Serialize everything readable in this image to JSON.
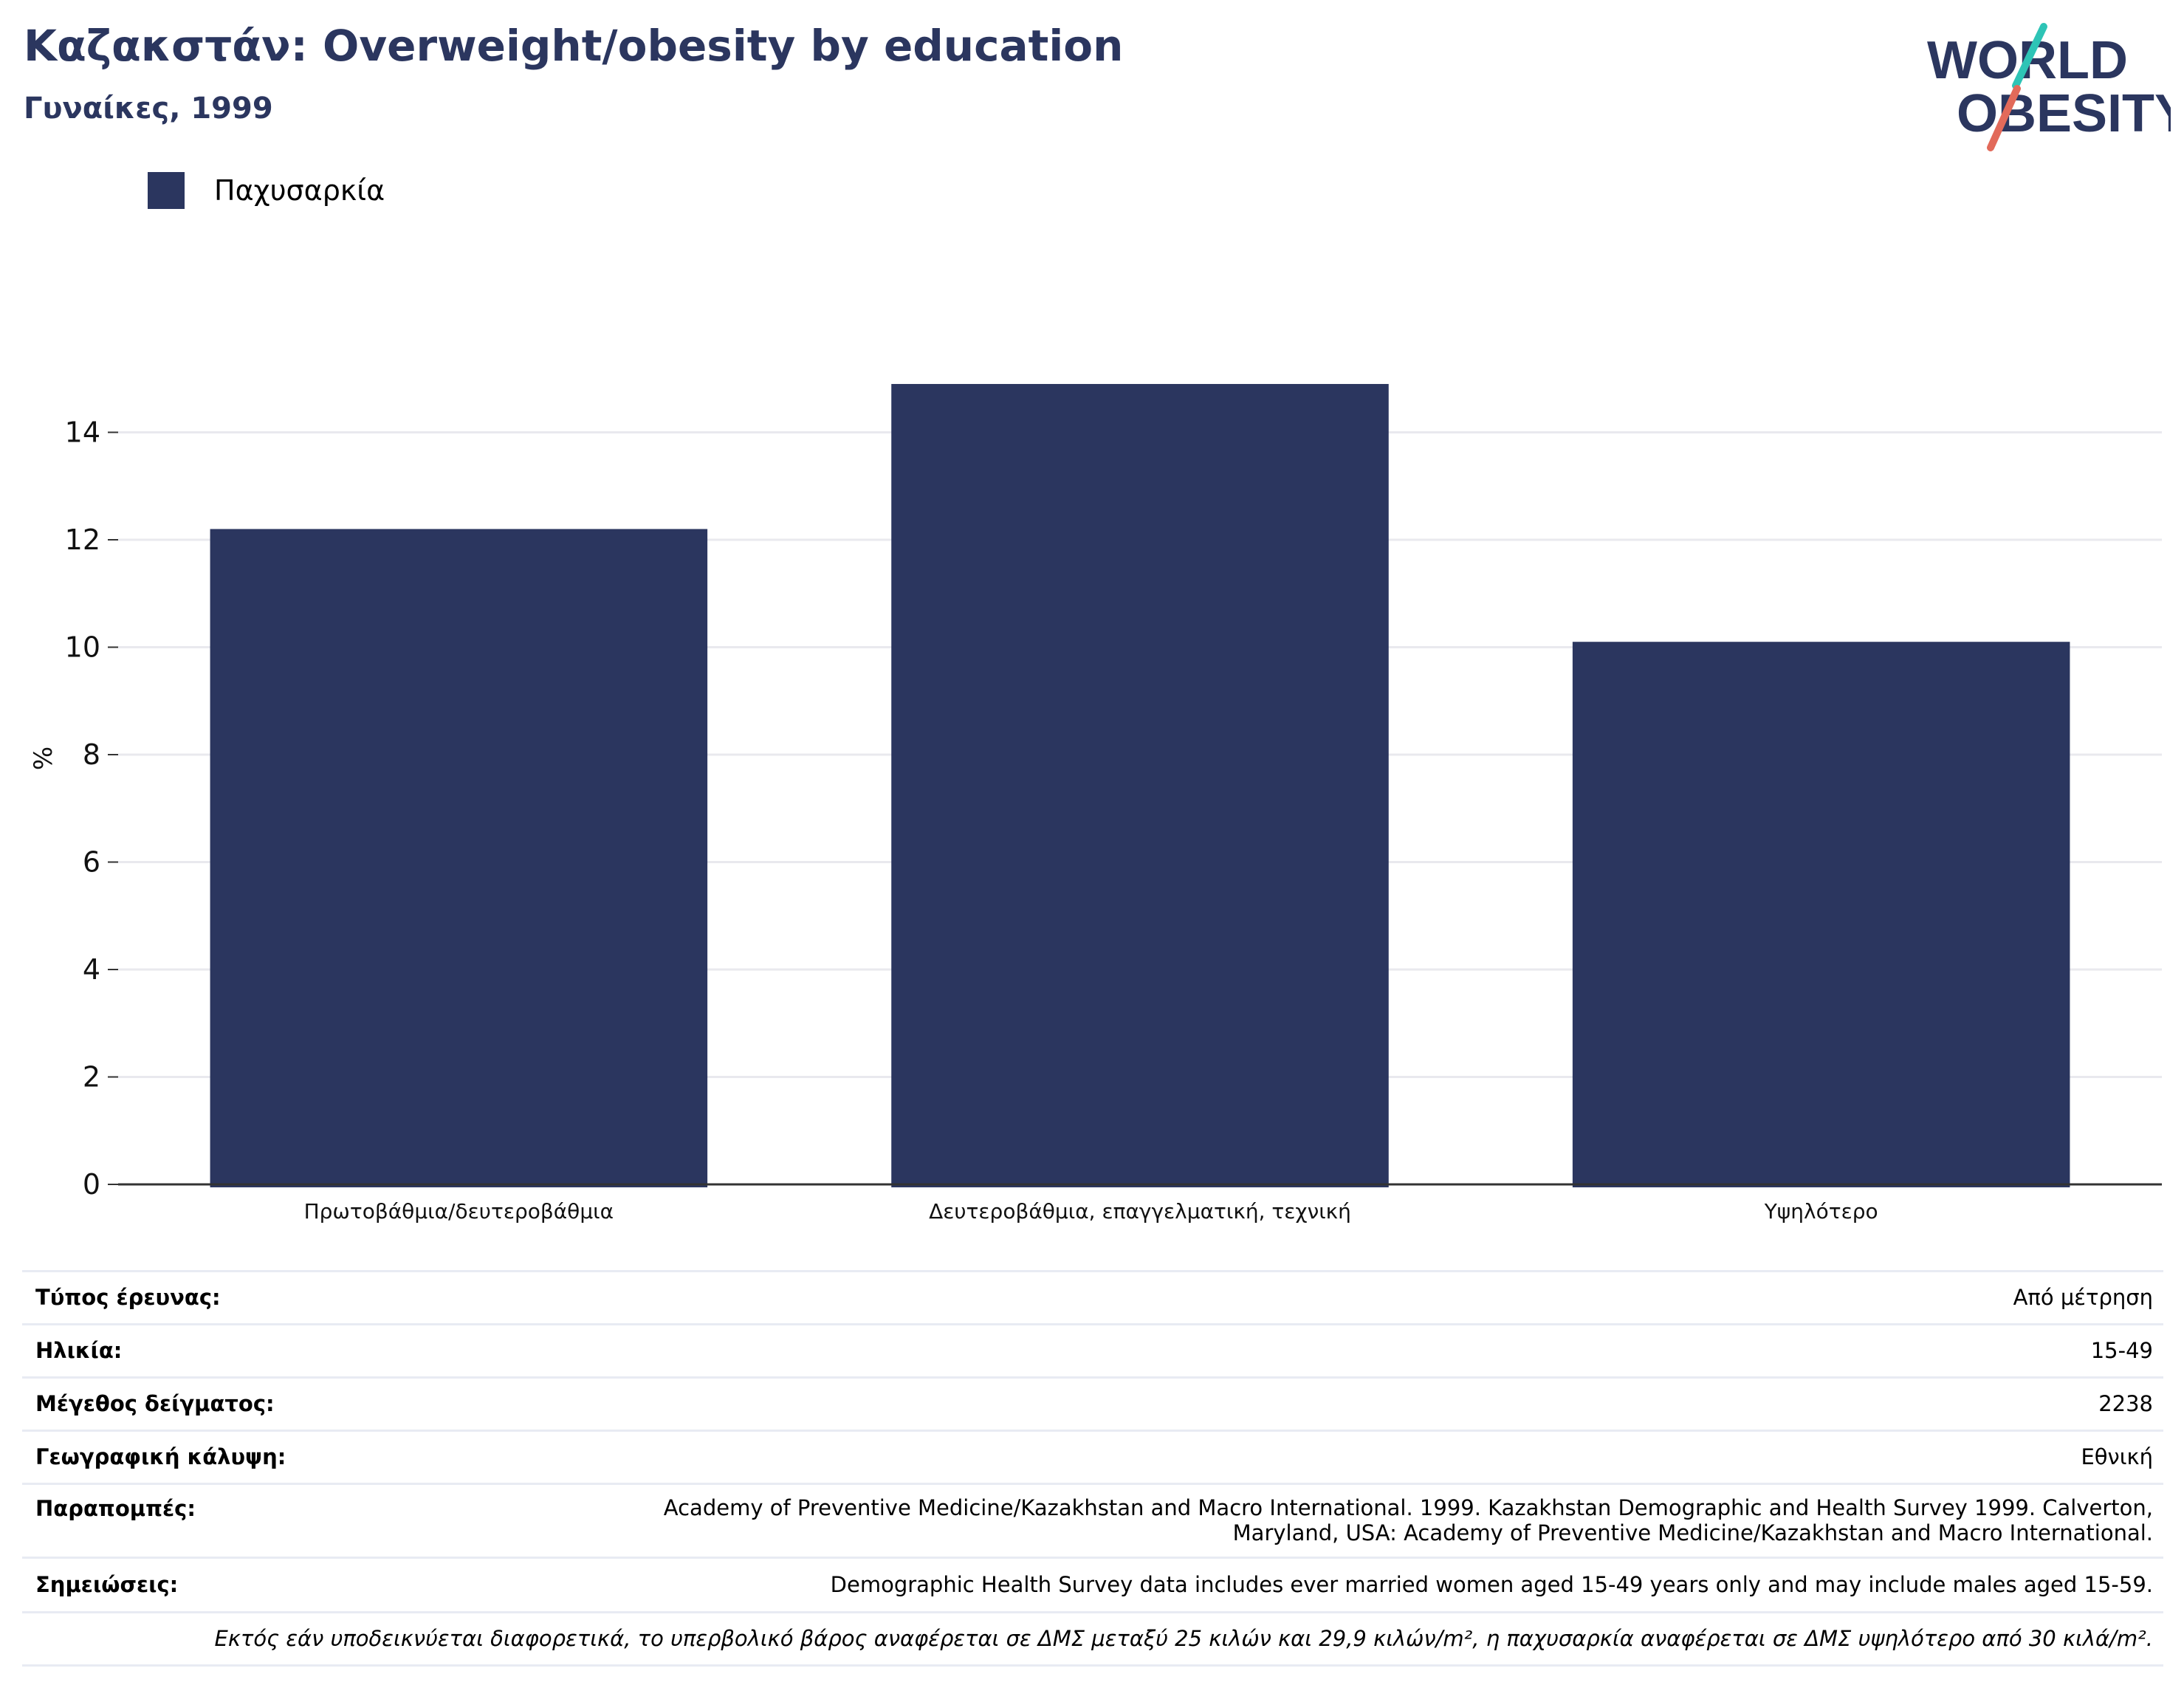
{
  "header": {
    "title": "Καζακστάν: Overweight/obesity by education",
    "subtitle": "Γυναίκες, 1999"
  },
  "logo": {
    "line1": "WORLD",
    "line2": "OBESITY",
    "colors": {
      "text": "#2b365f",
      "slash_top": "#2ec4b6",
      "slash_bottom": "#e26a5a"
    }
  },
  "colors": {
    "bar": "#2b365f",
    "grid": "#e9e9ee",
    "axis": "#333333"
  },
  "chart_data": {
    "type": "bar",
    "categories": [
      "Πρωτοβάθμια/δευτεροβάθμια",
      "Δευτεροβάθμια, επαγγελματική, τεχνική",
      "Υψηλότερο"
    ],
    "series": [
      {
        "name": "Παχυσαρκία",
        "values": [
          12.2,
          14.9,
          10.1
        ]
      }
    ],
    "ylabel": "%",
    "xlabel": "",
    "ylim": [
      0,
      16
    ],
    "yticks": [
      0,
      2,
      4,
      6,
      8,
      10,
      12,
      14
    ],
    "grid": true,
    "legend": "top-left"
  },
  "meta": {
    "rows": [
      {
        "key": "Τύπος έρευνας:",
        "value": "Από μέτρηση"
      },
      {
        "key": "Ηλικία:",
        "value": "15-49"
      },
      {
        "key": "Μέγεθος δείγματος:",
        "value": "2238"
      },
      {
        "key": "Γεωγραφική κάλυψη:",
        "value": "Εθνική"
      },
      {
        "key": "Παραπομπές:",
        "value_line1": "Academy of Preventive Medicine/Kazakhstan and Macro International. 1999. Kazakhstan Demographic and Health Survey 1999. Calverton,",
        "value_line2": "Maryland, USA: Academy of Preventive Medicine/Kazakhstan and Macro International."
      },
      {
        "key": "Σημειώσεις:",
        "value": "Demographic Health Survey data includes ever married women aged 15-49 years only and may include males aged 15-59."
      }
    ],
    "footnote": "Εκτός εάν υποδεικνύεται διαφορετικά, το υπερβολικό βάρος αναφέρεται σε ΔΜΣ μεταξύ 25 κιλών και 29,9 κιλών/m², η παχυσαρκία αναφέρεται σε ΔΜΣ υψηλότερο από 30 κιλά/m²."
  }
}
